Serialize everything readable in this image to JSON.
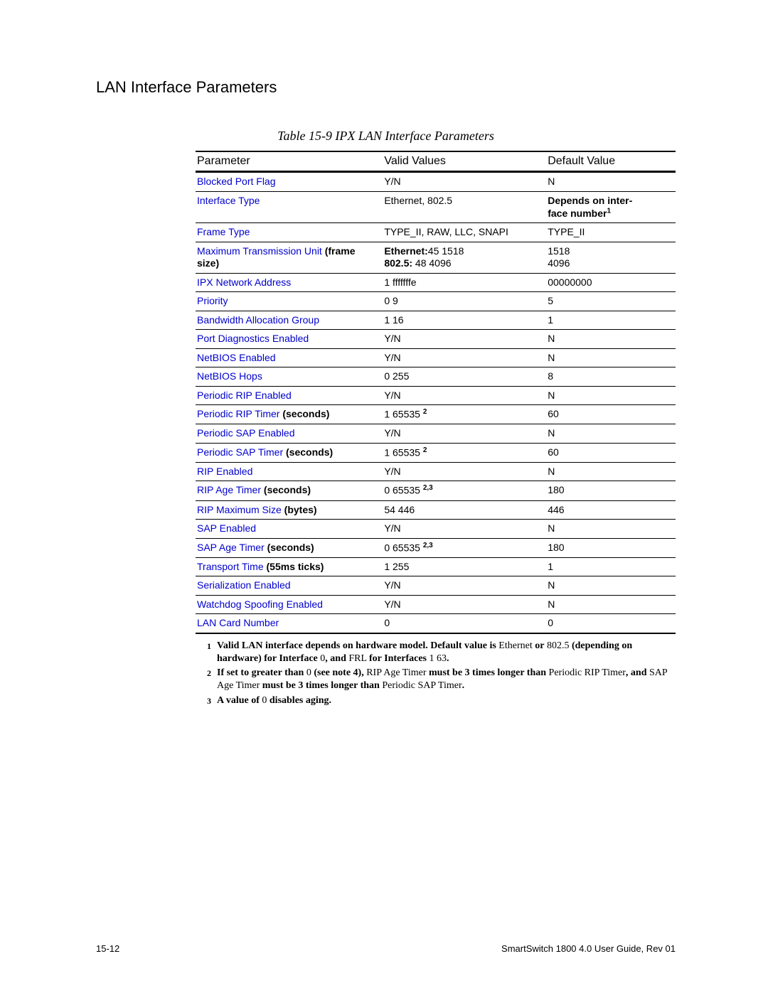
{
  "section_title": "LAN Interface Parameters",
  "table_caption": "Table 15-9    IPX LAN Interface Parameters",
  "headers": {
    "parameter": "Parameter",
    "valid": "Valid Values",
    "default": "Default Value"
  },
  "rows": [
    {
      "param": "Blocked Port Flag",
      "suffix": "",
      "valid_html": "Y/N",
      "default_html": "N"
    },
    {
      "param": "Interface Type",
      "suffix": "",
      "valid_html": "Ethernet, 802.5",
      "default_html": "<span class='bold'>Depends on inter-<br>face number<span class='sup'>1</span></span>"
    },
    {
      "param": "Frame Type",
      "suffix": "",
      "valid_html": "TYPE_II, RAW, LLC, SNAPI",
      "default_html": "TYPE_II"
    },
    {
      "param": "Maximum Transmission Unit",
      "suffix": "   (frame size)",
      "valid_html": "<span class='bold'>Ethernet:</span>45 1518<br><span class='bold'>802.5:</span> 48 4096",
      "default_html": "1518<br>4096"
    },
    {
      "param": "IPX Network Address",
      "suffix": "",
      "valid_html": "1 fffffffe",
      "default_html": "00000000"
    },
    {
      "param": "Priority",
      "suffix": "",
      "valid_html": "0 9",
      "default_html": "5"
    },
    {
      "param": "Bandwidth Allocation Group",
      "suffix": "",
      "valid_html": "1 16",
      "default_html": "1"
    },
    {
      "param": "Port Diagnostics Enabled",
      "suffix": "",
      "valid_html": "Y/N",
      "default_html": "N"
    },
    {
      "param": "NetBIOS Enabled",
      "suffix": "",
      "valid_html": "Y/N",
      "default_html": "N"
    },
    {
      "param": "NetBIOS Hops",
      "suffix": "",
      "valid_html": "0 255",
      "default_html": "8"
    },
    {
      "param": "Periodic RIP Enabled",
      "suffix": "",
      "valid_html": "Y/N",
      "default_html": "N"
    },
    {
      "param": "Periodic RIP Timer",
      "suffix": "  (seconds)",
      "valid_html": "1 65535 <span class='sup'>2</span>",
      "default_html": "60"
    },
    {
      "param": "Periodic SAP Enabled",
      "suffix": "",
      "valid_html": "Y/N",
      "default_html": "N"
    },
    {
      "param": "Periodic SAP Timer",
      "suffix": "   (seconds)",
      "valid_html": "1 65535 <span class='sup'>2</span>",
      "default_html": "60"
    },
    {
      "param": "RIP Enabled",
      "suffix": "",
      "valid_html": "Y/N",
      "default_html": "N"
    },
    {
      "param": "RIP Age Timer",
      "suffix": " (seconds)",
      "valid_html": "0 65535 <span class='sup'>2,3</span>",
      "default_html": "180"
    },
    {
      "param": "RIP Maximum Size",
      "suffix": " (bytes)",
      "valid_html": "54 446",
      "default_html": "446"
    },
    {
      "param": "SAP Enabled",
      "suffix": "",
      "valid_html": "Y/N",
      "default_html": "N"
    },
    {
      "param": "SAP Age Timer",
      "suffix": " (seconds)",
      "valid_html": "0 65535 <span class='sup'>2,3</span>",
      "default_html": "180"
    },
    {
      "param": "Transport Time",
      "suffix": "  (55ms ticks)",
      "valid_html": "1 255",
      "default_html": "1"
    },
    {
      "param": "Serialization Enabled",
      "suffix": "",
      "valid_html": "Y/N",
      "default_html": "N"
    },
    {
      "param": "Watchdog Spoofing Enabled",
      "suffix": "",
      "valid_html": "Y/N",
      "default_html": "N"
    },
    {
      "param": "LAN Card Number",
      "suffix": "",
      "valid_html": "0",
      "default_html": "0"
    }
  ],
  "footnotes": [
    {
      "n": "1",
      "html": "<span class='b'>Valid LAN interface depends on hardware model. Default value is</span> Ethernet <span class='b'>or</span> 802.5 <span class='b'>(depending on hardware) for Interface</span> 0<span class='b'>, and</span> FRL <span class='b'>for Interfaces</span> 1 63<span class='b'>.</span>"
    },
    {
      "n": "2",
      "html": "<span class='b'>If set to greater than</span> 0 <span class='b'>(see note 4),</span> RIP Age Timer <span class='b'>must be 3 times longer than</span> Periodic RIP Timer<span class='b'>, and</span> SAP Age Timer <span class='b'>must be 3 times longer than</span> Periodic SAP Timer<span class='b'>.</span>"
    },
    {
      "n": "3",
      "html": "<span class='b'>A value of</span> 0 <span class='b'>disables aging.</span>"
    }
  ],
  "footer": {
    "left": "15-12",
    "right": "SmartSwitch 1800 4.0 User Guide, Rev 01"
  }
}
